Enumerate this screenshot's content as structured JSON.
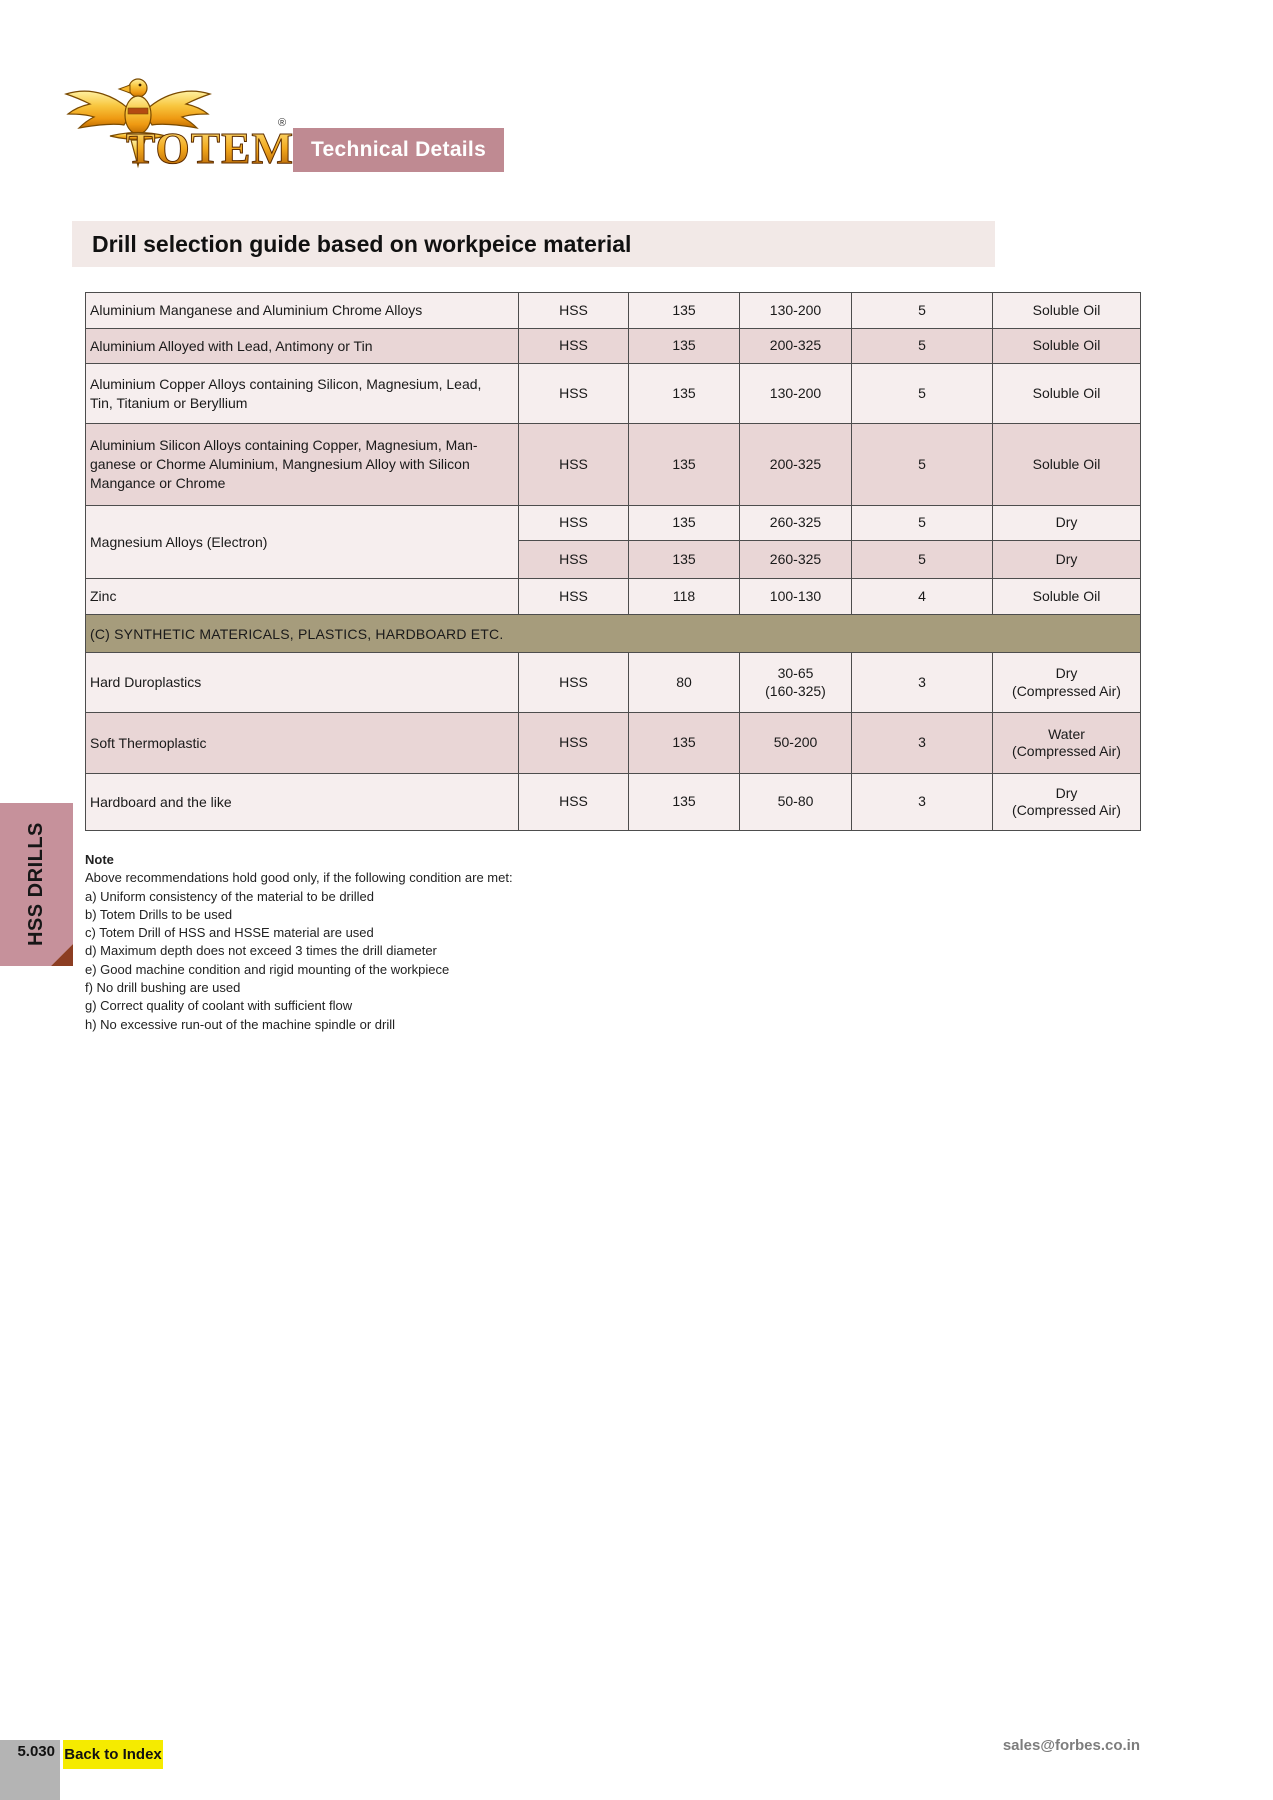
{
  "header": {
    "brand": "TOTEM",
    "registered_mark": "®",
    "badge_label": "Technical Details"
  },
  "page_title": "Drill selection guide based on workpeice material",
  "sidebar_tab": "HSS DRILLS",
  "colors": {
    "badge_pink": "#bf8a92",
    "tab_pink": "#c6919b",
    "banner_bg": "#f2e9e7",
    "row_light": "#f6eeee",
    "row_pink": "#e9d6d6",
    "section_band": "#a69c7c",
    "fold_corner": "#8c3d22",
    "footer_yellow": "#f5eb00",
    "footer_gray": "#b4b4b4",
    "logo_gold": "#f2a81d"
  },
  "table": {
    "rows": [
      {
        "type": "data",
        "shade": "light",
        "material": "Aluminium Manganese and Aluminium Chrome Alloys",
        "drill": "HSS",
        "point_angle": "135",
        "cutting_speed": "130-200",
        "feed": "5",
        "coolant": "Soluble Oil"
      },
      {
        "type": "data",
        "shade": "pink",
        "material": "Aluminium Alloyed with Lead, Antimony or Tin",
        "drill": "HSS",
        "point_angle": "135",
        "cutting_speed": "200-325",
        "feed": "5",
        "coolant": "Soluble Oil"
      },
      {
        "type": "data",
        "shade": "light",
        "material": "Aluminium Copper Alloys containing Silicon, Magnesium, Lead,\nTin, Titanium or Beryllium",
        "drill": "HSS",
        "point_angle": "135",
        "cutting_speed": "130-200",
        "feed": "5",
        "coolant": "Soluble Oil"
      },
      {
        "type": "data",
        "shade": "pink",
        "material": "Aluminium Silicon Alloys containing Copper, Magnesium, Man-\nganese or Chorme Aluminium, Mangnesium Alloy with Silicon\nMangance or Chrome",
        "drill": "HSS",
        "point_angle": "135",
        "cutting_speed": "200-325",
        "feed": "5",
        "coolant": "Soluble Oil"
      },
      {
        "type": "data",
        "shade": "light",
        "material": "Magnesium Alloys (Electron)",
        "material_rowspan": 2,
        "drill": "HSS",
        "point_angle": "135",
        "cutting_speed": "260-325",
        "feed": "5",
        "coolant": "Dry"
      },
      {
        "type": "data",
        "shade": "pink",
        "material": null,
        "drill": "HSS",
        "point_angle": "135",
        "cutting_speed": "260-325",
        "feed": "5",
        "coolant": "Dry"
      },
      {
        "type": "data",
        "shade": "light",
        "material": "Zinc",
        "drill": "HSS",
        "point_angle": "118",
        "cutting_speed": "100-130",
        "feed": "4",
        "coolant": "Soluble Oil"
      },
      {
        "type": "section",
        "label": "(C) SYNTHETIC MATERICALS, PLASTICS, HARDBOARD ETC."
      },
      {
        "type": "data",
        "shade": "light",
        "material": "Hard Duroplastics",
        "drill": "HSS",
        "point_angle": "80",
        "cutting_speed": "30-65\n(160-325)",
        "feed": "3",
        "coolant": "Dry\n(Compressed Air)"
      },
      {
        "type": "data",
        "shade": "pink",
        "material": "Soft Thermoplastic",
        "drill": "HSS",
        "point_angle": "135",
        "cutting_speed": "50-200",
        "feed": "3",
        "coolant": "Water\n(Compressed Air)"
      },
      {
        "type": "data",
        "shade": "light",
        "material": "Hardboard and the like",
        "drill": "HSS",
        "point_angle": "135",
        "cutting_speed": "50-80",
        "feed": "3",
        "coolant": "Dry\n(Compressed Air)"
      }
    ]
  },
  "note": {
    "heading": "Note",
    "intro": "Above recommendations hold good only, if the following condition are met:",
    "items": [
      "a) Uniform consistency of the material to be drilled",
      "b) Totem Drills to be used",
      "c) Totem Drill of HSS and HSSE material are used",
      "d) Maximum depth does not exceed 3 times the drill diameter",
      "e) Good machine condition and rigid mounting of the workpiece",
      "f) No drill bushing are used",
      "g) Correct quality of coolant with sufficient flow",
      "h) No excessive run-out of the machine spindle or drill"
    ]
  },
  "footer": {
    "page_number": "5.030",
    "back_link": "Back to Index",
    "email": "sales@forbes.co.in"
  }
}
